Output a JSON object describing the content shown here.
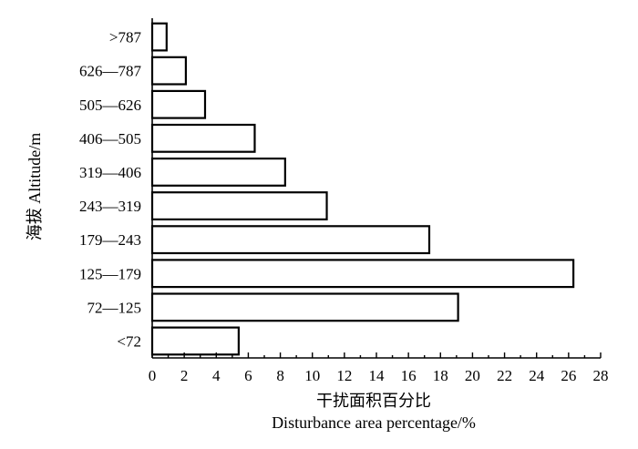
{
  "chart_data": {
    "type": "bar",
    "orientation": "horizontal",
    "categories": [
      "<72",
      "72—125",
      "125—179",
      "179—243",
      "243—319",
      "319—406",
      "406—505",
      "505—626",
      "626—787",
      ">787"
    ],
    "values": [
      5.4,
      19.1,
      26.3,
      17.3,
      10.9,
      8.3,
      6.4,
      3.3,
      2.1,
      0.9
    ],
    "xlim": [
      0,
      28
    ],
    "xticks": [
      0,
      2,
      4,
      6,
      8,
      10,
      12,
      14,
      16,
      18,
      20,
      22,
      24,
      26,
      28
    ],
    "xlabel_cn": "干扰面积百分比",
    "xlabel_en": "Disturbance area percentage/%",
    "ylabel": "海拔 Altitude/m",
    "grid": false,
    "bar_fill": "#ffffff",
    "bar_stroke": "#000000"
  }
}
